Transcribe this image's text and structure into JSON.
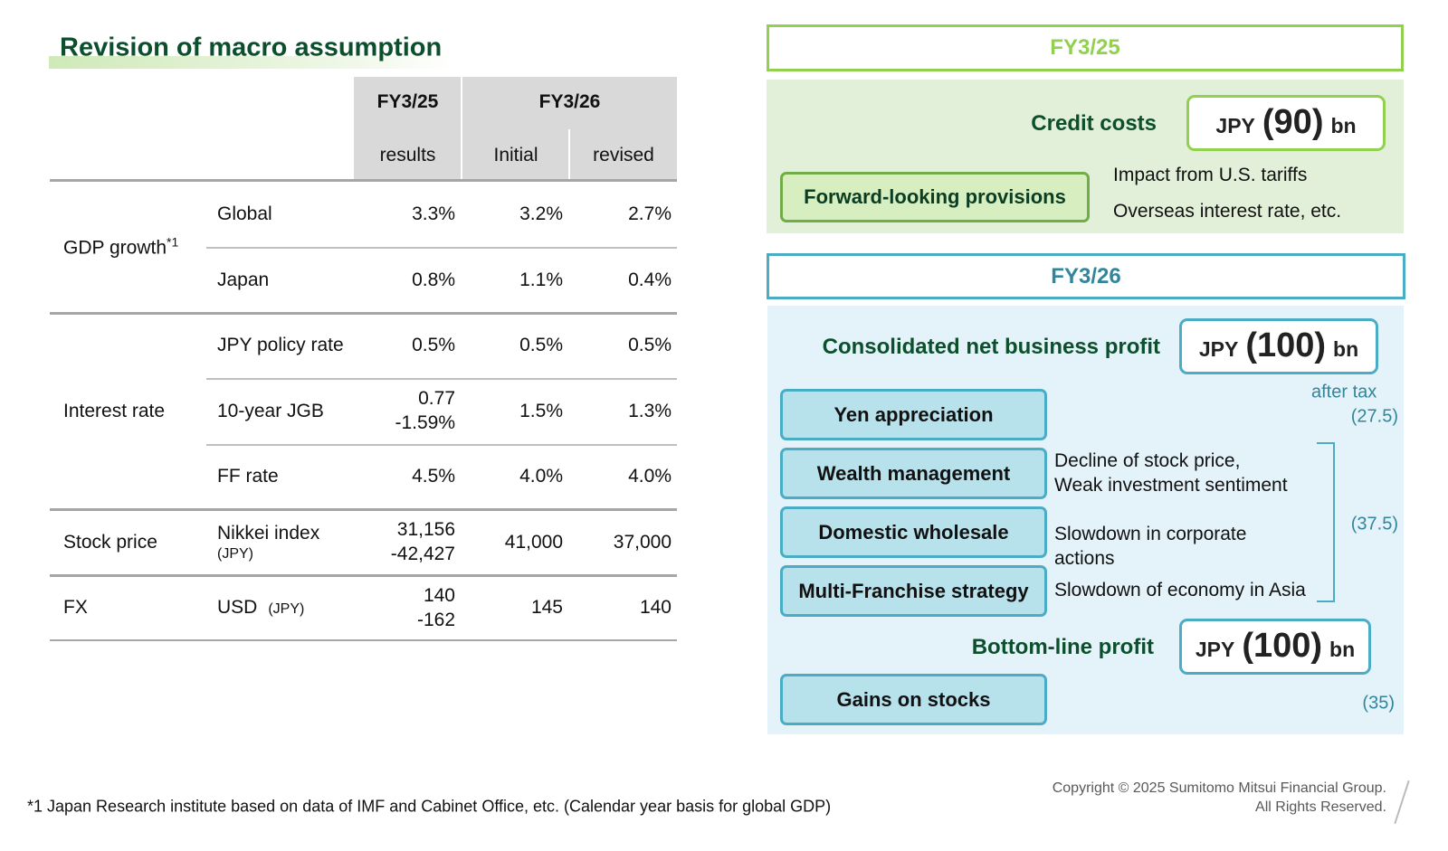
{
  "title": "Revision of macro assumption",
  "table": {
    "header": {
      "fy25": "FY3/25",
      "fy26": "FY3/26",
      "results": "results",
      "initial": "Initial",
      "revised": "revised"
    },
    "groups": [
      {
        "label": "GDP growth",
        "note": "*1",
        "rows": [
          {
            "item": "Global",
            "values": [
              "3.3%",
              "3.2%",
              "2.7%"
            ]
          },
          {
            "item": "Japan",
            "values": [
              "0.8%",
              "1.1%",
              "0.4%"
            ]
          }
        ]
      },
      {
        "label": "Interest rate",
        "rows": [
          {
            "item": "JPY policy rate",
            "values": [
              "0.5%",
              "0.5%",
              "0.5%"
            ]
          },
          {
            "item": "10-year JGB",
            "values": [
              [
                "0.77",
                "-1.59%"
              ],
              "1.5%",
              "1.3%"
            ]
          },
          {
            "item": "FF rate",
            "values": [
              "4.5%",
              "4.0%",
              "4.0%"
            ]
          }
        ]
      },
      {
        "label": "Stock price",
        "rows": [
          {
            "item": "Nikkei index",
            "unit": "(JPY)",
            "values": [
              [
                "31,156",
                "-42,427"
              ],
              "41,000",
              "37,000"
            ]
          }
        ]
      },
      {
        "label": "FX",
        "rows": [
          {
            "item": "USD",
            "unit": "(JPY)",
            "inline_unit": true,
            "values": [
              [
                "140",
                "-162"
              ],
              "145",
              "140"
            ]
          }
        ]
      }
    ]
  },
  "fy25": {
    "header": "FY3/25",
    "label": "Credit costs",
    "amount": {
      "prefix": "JPY",
      "value": "(90)",
      "suffix": "bn"
    },
    "provision": "Forward-looking provisions",
    "impacts": [
      "Impact from U.S. tariffs",
      "Overseas interest rate, etc."
    ]
  },
  "fy26": {
    "header": "FY3/26",
    "label": "Consolidated net business profit",
    "amount": {
      "prefix": "JPY",
      "value": "(100)",
      "suffix": "bn"
    },
    "after_tax": "after tax",
    "items": [
      {
        "label": "Yen appreciation"
      },
      {
        "label": "Wealth management",
        "description": [
          "Decline of stock price,",
          "Weak investment sentiment"
        ]
      },
      {
        "label": "Domestic wholesale",
        "description": [
          "Slowdown in corporate",
          "actions"
        ]
      },
      {
        "label": "Multi-Franchise strategy",
        "description": [
          "Slowdown of economy in Asia"
        ]
      }
    ],
    "yen_impact": "(27.5)",
    "group_impact": "(37.5)",
    "bottom_label": "Bottom-line profit",
    "bottom_amount": {
      "prefix": "JPY",
      "value": "(100)",
      "suffix": "bn"
    },
    "gains": "Gains on stocks",
    "gains_impact": "(35)"
  },
  "footnote": "*1 Japan Research institute based on data of IMF and Cabinet Office, etc. (Calendar year basis for global GDP)",
  "copyright": [
    "Copyright © 2025 Sumitomo Mitsui Financial Group.",
    "All Rights Reserved."
  ]
}
